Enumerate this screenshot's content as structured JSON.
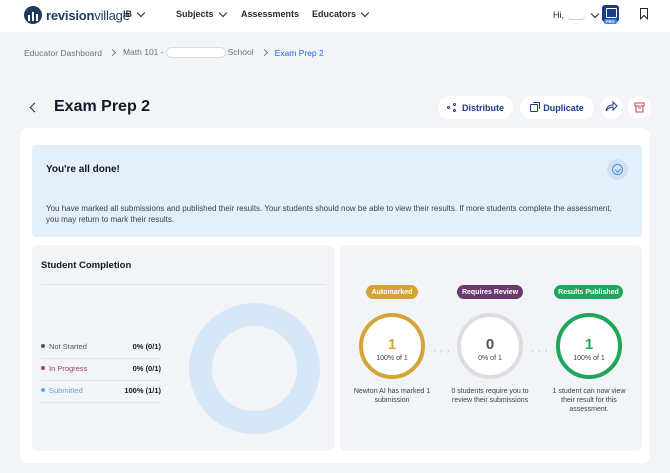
{
  "nav": {
    "brand": {
      "bold": "revision",
      "light": "village"
    },
    "items": [
      {
        "label": "IB",
        "dropdown": true
      },
      {
        "label": "Subjects",
        "dropdown": true
      },
      {
        "label": "Assessments",
        "dropdown": false
      },
      {
        "label": "Educators",
        "dropdown": true
      }
    ],
    "greeting": "Hi,",
    "pro_badge": "PRO"
  },
  "breadcrumb": {
    "items": [
      "Educator Dashboard",
      "Math 101 -",
      "School",
      "Exam Prep 2"
    ]
  },
  "page": {
    "title": "Exam Prep 2",
    "distribute_label": "Distribute",
    "duplicate_label": "Duplicate"
  },
  "done": {
    "title": "You're all done!",
    "text": "You have marked all submissions and published their results. Your students should now be able to view their results. If more students complete the assessment, you may return to mark their results."
  },
  "completion": {
    "title": "Student Completion",
    "rows": [
      {
        "label": "Not Started",
        "value": "0% (0/1)",
        "color": "#4b5563"
      },
      {
        "label": "In Progress",
        "value": "0% (0/1)",
        "color": "#9d3d6b"
      },
      {
        "label": "Submitted",
        "value": "100% (1/1)",
        "color": "#5aa9e6"
      }
    ]
  },
  "stages": [
    {
      "tag": "Automarked",
      "color": "#d4a43a",
      "number": "1",
      "sub": "100% of 1",
      "desc": "Newton AI has marked 1 submission"
    },
    {
      "tag": "Requires Review",
      "color": "#6b3a6e",
      "number": "0",
      "sub": "0% of 1",
      "desc": "0 students require you to review their submissions"
    },
    {
      "tag": "Results Published",
      "color": "#1ea65a",
      "number": "1",
      "sub": "100% of 1",
      "desc": "1 student can now view their result for this assessment."
    }
  ]
}
